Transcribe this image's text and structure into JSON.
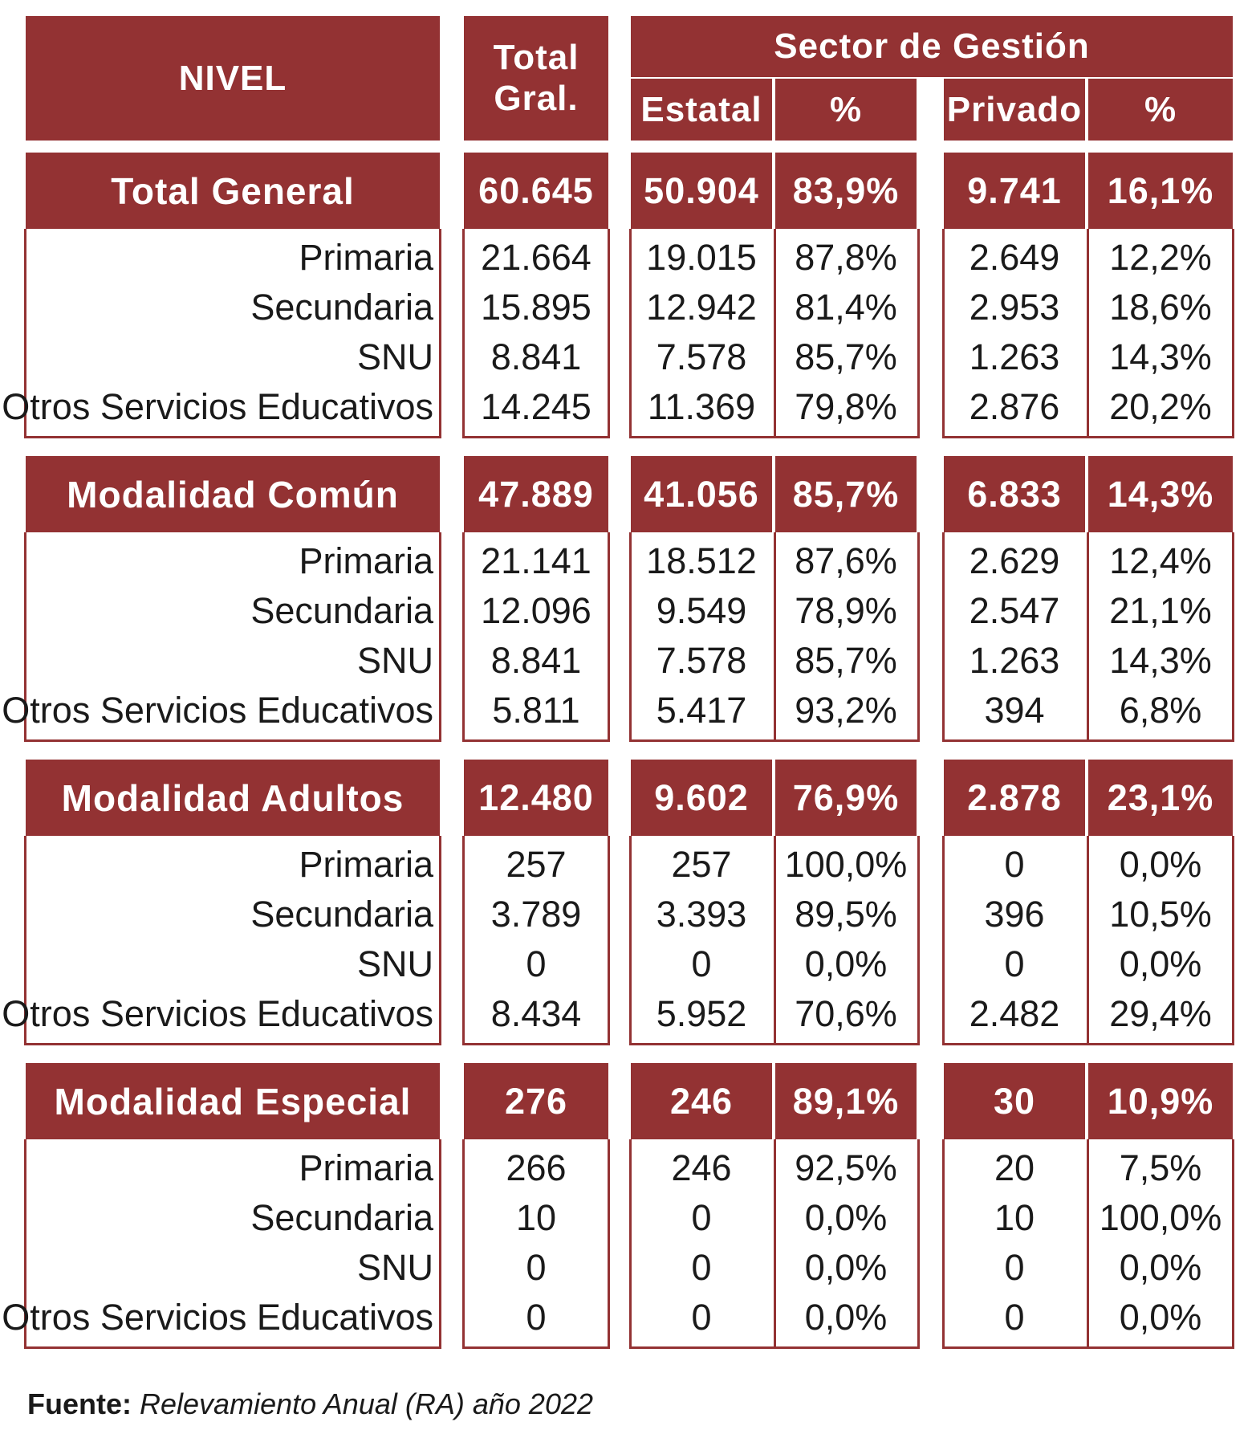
{
  "header": {
    "nivel": "NIVEL",
    "total_line1": "Total",
    "total_line2": "Gral.",
    "sector": "Sector de Gestión",
    "estatal": "Estatal",
    "pct_estatal": "%",
    "privado": "Privado",
    "pct_privado": "%"
  },
  "sections": [
    {
      "title": "Total General",
      "totals": [
        "60.645",
        "50.904",
        "83,9%",
        "9.741",
        "16,1%"
      ],
      "rows": [
        {
          "label": "Primaria",
          "values": [
            "21.664",
            "19.015",
            "87,8%",
            "2.649",
            "12,2%"
          ]
        },
        {
          "label": "Secundaria",
          "values": [
            "15.895",
            "12.942",
            "81,4%",
            "2.953",
            "18,6%"
          ]
        },
        {
          "label": "SNU",
          "values": [
            "8.841",
            "7.578",
            "85,7%",
            "1.263",
            "14,3%"
          ]
        },
        {
          "label": "Otros Servicios Educativos",
          "values": [
            "14.245",
            "11.369",
            "79,8%",
            "2.876",
            "20,2%"
          ]
        }
      ]
    },
    {
      "title": "Modalidad Común",
      "totals": [
        "47.889",
        "41.056",
        "85,7%",
        "6.833",
        "14,3%"
      ],
      "rows": [
        {
          "label": "Primaria",
          "values": [
            "21.141",
            "18.512",
            "87,6%",
            "2.629",
            "12,4%"
          ]
        },
        {
          "label": "Secundaria",
          "values": [
            "12.096",
            "9.549",
            "78,9%",
            "2.547",
            "21,1%"
          ]
        },
        {
          "label": "SNU",
          "values": [
            "8.841",
            "7.578",
            "85,7%",
            "1.263",
            "14,3%"
          ]
        },
        {
          "label": "Otros Servicios Educativos",
          "values": [
            "5.811",
            "5.417",
            "93,2%",
            "394",
            "6,8%"
          ]
        }
      ]
    },
    {
      "title": "Modalidad Adultos",
      "totals": [
        "12.480",
        "9.602",
        "76,9%",
        "2.878",
        "23,1%"
      ],
      "rows": [
        {
          "label": "Primaria",
          "values": [
            "257",
            "257",
            "100,0%",
            "0",
            "0,0%"
          ]
        },
        {
          "label": "Secundaria",
          "values": [
            "3.789",
            "3.393",
            "89,5%",
            "396",
            "10,5%"
          ]
        },
        {
          "label": "SNU",
          "values": [
            "0",
            "0",
            "0,0%",
            "0",
            "0,0%"
          ]
        },
        {
          "label": "Otros Servicios Educativos",
          "values": [
            "8.434",
            "5.952",
            "70,6%",
            "2.482",
            "29,4%"
          ]
        }
      ]
    },
    {
      "title": "Modalidad Especial",
      "totals": [
        "276",
        "246",
        "89,1%",
        "30",
        "10,9%"
      ],
      "rows": [
        {
          "label": "Primaria",
          "values": [
            "266",
            "246",
            "92,5%",
            "20",
            "7,5%"
          ]
        },
        {
          "label": "Secundaria",
          "values": [
            "10",
            "0",
            "0,0%",
            "10",
            "100,0%"
          ]
        },
        {
          "label": "SNU",
          "values": [
            "0",
            "0",
            "0,0%",
            "0",
            "0,0%"
          ]
        },
        {
          "label": "Otros Servicios Educativos",
          "values": [
            "0",
            "0",
            "0,0%",
            "0",
            "0,0%"
          ]
        }
      ]
    }
  ],
  "source": {
    "label": "Fuente:",
    "text": "Relevamiento Anual (RA) año 2022"
  },
  "colors": {
    "header_bg": "#933233",
    "header_text": "#ffffff",
    "body_text": "#1a1a1a"
  }
}
